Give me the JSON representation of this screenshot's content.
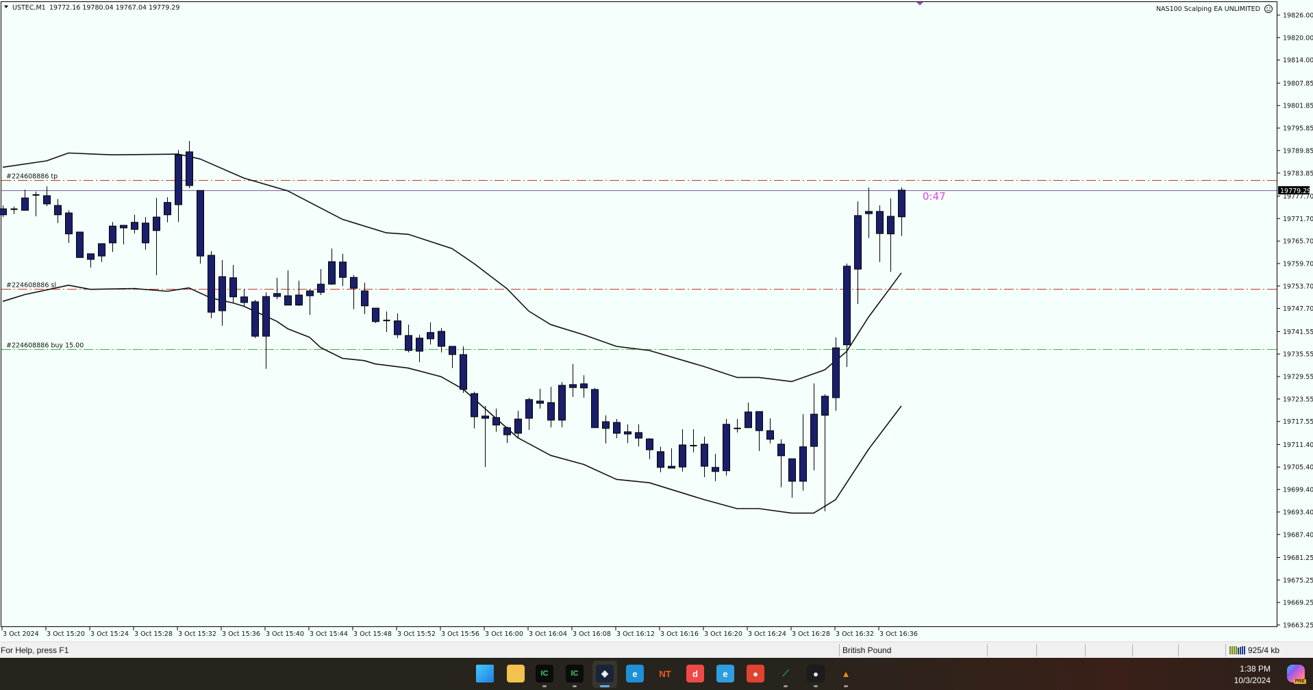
{
  "chart_header": {
    "symbol": "USTEC,M1",
    "ohlc": "19772.16 19780.04 19767.04 19779.29",
    "ea_label": "NAS100 Scalping EA UNLIMITED",
    "ea_icon": "smiley-face-icon"
  },
  "timer": "0:47",
  "current_price_label": "19779.29",
  "colors": {
    "background": "#f5fffb",
    "candle_fill": "#1a1f6b",
    "candle_outline": "#000000",
    "band_line": "#111111",
    "bid_line": "#7b5ea7",
    "tp_line": "#c0392b",
    "sl_line": "#c0392b",
    "buy_line": "#3cb043",
    "timer": "#e040e0"
  },
  "order_lines": [
    {
      "label": "#224608886 tp",
      "price": 19782.0,
      "kind": "tp"
    },
    {
      "label": "#224608886 sl",
      "price": 19752.9,
      "kind": "sl"
    },
    {
      "label": "#224608886 buy 15.00",
      "price": 19736.9,
      "kind": "buy"
    }
  ],
  "chart_data": {
    "type": "candlestick",
    "symbol": "USTEC",
    "timeframe": "M1",
    "ylim": [
      19663.25,
      19826.0
    ],
    "grid": false,
    "price_ticks": [
      "19826.00",
      "19820.00",
      "19814.00",
      "19807.85",
      "19801.85",
      "19795.85",
      "19789.85",
      "19783.85",
      "19777.70",
      "19771.70",
      "19765.70",
      "19759.70",
      "19753.70",
      "19747.70",
      "19741.55",
      "19735.55",
      "19729.55",
      "19723.55",
      "19717.55",
      "19711.40",
      "19705.40",
      "19699.40",
      "19693.40",
      "19687.40",
      "19681.25",
      "19675.25",
      "19669.25",
      "19663.25"
    ],
    "time_ticks": [
      {
        "text": "3 Oct 2024",
        "at": "15:16"
      },
      {
        "text": "3 Oct 15:20",
        "at": "15:20"
      },
      {
        "text": "3 Oct 15:24",
        "at": "15:24"
      },
      {
        "text": "3 Oct 15:28",
        "at": "15:28"
      },
      {
        "text": "3 Oct 15:32",
        "at": "15:32"
      },
      {
        "text": "3 Oct 15:36",
        "at": "15:36"
      },
      {
        "text": "3 Oct 15:40",
        "at": "15:40"
      },
      {
        "text": "3 Oct 15:44",
        "at": "15:44"
      },
      {
        "text": "3 Oct 15:48",
        "at": "15:48"
      },
      {
        "text": "3 Oct 15:52",
        "at": "15:52"
      },
      {
        "text": "3 Oct 15:56",
        "at": "15:56"
      },
      {
        "text": "3 Oct 16:00",
        "at": "16:00"
      },
      {
        "text": "3 Oct 16:04",
        "at": "16:04"
      },
      {
        "text": "3 Oct 16:08",
        "at": "16:08"
      },
      {
        "text": "3 Oct 16:12",
        "at": "16:12"
      },
      {
        "text": "3 Oct 16:16",
        "at": "16:16"
      },
      {
        "text": "3 Oct 16:20",
        "at": "16:20"
      },
      {
        "text": "3 Oct 16:24",
        "at": "16:24"
      },
      {
        "text": "3 Oct 16:28",
        "at": "16:28"
      },
      {
        "text": "3 Oct 16:32",
        "at": "16:32"
      },
      {
        "text": "3 Oct 16:36",
        "at": "16:36"
      }
    ],
    "candles_columns": [
      "time",
      "open",
      "high",
      "low",
      "close"
    ],
    "candles": [
      [
        "15:16",
        19772.7,
        19775.2,
        19772.1,
        19774.3
      ],
      [
        "15:17",
        19774.2,
        19774.9,
        19772.9,
        19774.2
      ],
      [
        "15:18",
        19773.9,
        19779.4,
        19773.8,
        19777.2
      ],
      [
        "15:19",
        19778.0,
        19778.9,
        19772.3,
        19778.0
      ],
      [
        "15:20",
        19777.8,
        19780.3,
        19775.0,
        19775.6
      ],
      [
        "15:21",
        19775.2,
        19776.9,
        19770.5,
        19772.7
      ],
      [
        "15:22",
        19773.2,
        19773.9,
        19765.2,
        19767.6
      ],
      [
        "15:23",
        19768.1,
        19768.2,
        19761.2,
        19761.3
      ],
      [
        "15:24",
        19760.8,
        19762.4,
        19758.6,
        19762.3
      ],
      [
        "15:25",
        19761.7,
        19765.0,
        19760.1,
        19765.0
      ],
      [
        "15:26",
        19765.2,
        19770.8,
        19762.8,
        19769.7
      ],
      [
        "15:27",
        19769.9,
        19769.9,
        19764.8,
        19769.2
      ],
      [
        "15:28",
        19768.8,
        19772.7,
        19767.7,
        19770.7
      ],
      [
        "15:29",
        19770.5,
        19772.1,
        19763.4,
        19765.2
      ],
      [
        "15:30",
        19768.5,
        19777.2,
        19756.6,
        19772.1
      ],
      [
        "15:31",
        19772.7,
        19777.4,
        19770.7,
        19776.0
      ],
      [
        "15:32",
        19775.4,
        19790.0,
        19770.8,
        19788.7
      ],
      [
        "15:33",
        19789.5,
        19792.4,
        19779.8,
        19780.5
      ],
      [
        "15:34",
        19779.2,
        19779.2,
        19759.7,
        19761.7
      ],
      [
        "15:35",
        19761.9,
        19763.0,
        19745.1,
        19746.7
      ],
      [
        "15:36",
        19747.1,
        19760.6,
        19743.1,
        19756.2
      ],
      [
        "15:37",
        19755.9,
        19759.3,
        19749.3,
        19750.8
      ],
      [
        "15:38",
        19750.8,
        19752.9,
        19748.4,
        19749.3
      ],
      [
        "15:39",
        19749.5,
        19750.0,
        19739.8,
        19740.3
      ],
      [
        "15:40",
        19740.3,
        19752.0,
        19731.6,
        19750.9
      ],
      [
        "15:41",
        19750.9,
        19755.9,
        19750.2,
        19751.7
      ],
      [
        "15:42",
        19751.1,
        19757.9,
        19748.6,
        19748.6
      ],
      [
        "15:43",
        19748.6,
        19755.1,
        19748.4,
        19751.3
      ],
      [
        "15:44",
        19751.1,
        19752.9,
        19746.0,
        19752.4
      ],
      [
        "15:45",
        19752.0,
        19758.2,
        19751.3,
        19754.2
      ],
      [
        "15:46",
        19754.2,
        19763.7,
        19754.0,
        19760.2
      ],
      [
        "15:47",
        19760.1,
        19762.3,
        19753.7,
        19756.0
      ],
      [
        "15:48",
        19756.0,
        19756.6,
        19747.5,
        19753.1
      ],
      [
        "15:49",
        19752.4,
        19754.6,
        19746.2,
        19748.4
      ],
      [
        "15:50",
        19747.8,
        19747.8,
        19743.8,
        19744.2
      ],
      [
        "15:51",
        19744.5,
        19746.9,
        19741.4,
        19744.5
      ],
      [
        "15:52",
        19744.4,
        19746.4,
        19739.8,
        19740.7
      ],
      [
        "15:53",
        19740.5,
        19743.4,
        19736.0,
        19736.5
      ],
      [
        "15:54",
        19736.3,
        19740.7,
        19733.4,
        19739.8
      ],
      [
        "15:55",
        19739.6,
        19744.0,
        19738.1,
        19741.3
      ],
      [
        "15:56",
        19741.6,
        19742.5,
        19736.0,
        19737.6
      ],
      [
        "15:57",
        19737.6,
        19737.6,
        19731.8,
        19735.4
      ],
      [
        "15:58",
        19735.4,
        19737.6,
        19725.2,
        19726.1
      ],
      [
        "15:59",
        19725.0,
        19725.5,
        19715.7,
        19718.8
      ],
      [
        "16:00",
        19719.0,
        19721.7,
        19705.4,
        19718.4
      ],
      [
        "16:01",
        19718.6,
        19721.0,
        19714.8,
        19716.6
      ],
      [
        "16:02",
        19715.9,
        19716.2,
        19711.8,
        19714.0
      ],
      [
        "16:03",
        19714.4,
        19720.4,
        19713.3,
        19718.2
      ],
      [
        "16:04",
        19718.4,
        19723.9,
        19715.3,
        19723.4
      ],
      [
        "16:05",
        19723.0,
        19726.3,
        19721.0,
        19722.4
      ],
      [
        "16:06",
        19722.6,
        19726.8,
        19716.0,
        19717.9
      ],
      [
        "16:07",
        19717.9,
        19728.1,
        19716.0,
        19727.2
      ],
      [
        "16:08",
        19727.4,
        19732.9,
        19724.1,
        19726.6
      ],
      [
        "16:09",
        19726.5,
        19729.9,
        19723.9,
        19727.6
      ],
      [
        "16:10",
        19726.1,
        19726.5,
        19715.9,
        19715.9
      ],
      [
        "16:11",
        19715.7,
        19719.2,
        19711.7,
        19717.5
      ],
      [
        "16:12",
        19717.3,
        19718.2,
        19713.1,
        19714.4
      ],
      [
        "16:13",
        19714.2,
        19716.8,
        19711.8,
        19714.8
      ],
      [
        "16:14",
        19714.6,
        19716.8,
        19710.9,
        19713.1
      ],
      [
        "16:15",
        19712.9,
        19713.1,
        19707.5,
        19710.0
      ],
      [
        "16:16",
        19709.5,
        19710.8,
        19704.0,
        19705.3
      ],
      [
        "16:17",
        19705.1,
        19710.4,
        19705.1,
        19705.6
      ],
      [
        "16:18",
        19705.4,
        19715.5,
        19704.2,
        19711.3
      ],
      [
        "16:19",
        19711.1,
        19715.5,
        19709.3,
        19711.1
      ],
      [
        "16:20",
        19711.5,
        19713.5,
        19702.7,
        19705.6
      ],
      [
        "16:21",
        19705.3,
        19708.9,
        19701.6,
        19704.2
      ],
      [
        "16:22",
        19704.4,
        19718.2,
        19703.1,
        19716.8
      ],
      [
        "16:23",
        19715.7,
        19718.2,
        19714.6,
        19715.7
      ],
      [
        "16:24",
        19715.9,
        19722.6,
        19715.9,
        19720.1
      ],
      [
        "16:25",
        19720.2,
        19720.2,
        19709.7,
        19715.1
      ],
      [
        "16:26",
        19715.1,
        19718.4,
        19711.7,
        19712.8
      ],
      [
        "16:27",
        19711.5,
        19712.8,
        19700.0,
        19708.4
      ],
      [
        "16:28",
        19707.6,
        19707.6,
        19697.2,
        19701.6
      ],
      [
        "16:29",
        19701.6,
        19719.5,
        19699.1,
        19710.8
      ],
      [
        "16:30",
        19710.9,
        19727.7,
        19704.5,
        19719.5
      ],
      [
        "16:31",
        19719.2,
        19724.8,
        19693.6,
        19724.3
      ],
      [
        "16:32",
        19723.9,
        19740.0,
        19720.4,
        19737.2
      ],
      [
        "16:33",
        19738.0,
        19759.7,
        19732.1,
        19759.0
      ],
      [
        "16:34",
        19758.2,
        19776.3,
        19748.9,
        19772.5
      ],
      [
        "16:35",
        19773.0,
        19780.0,
        19766.5,
        19773.6
      ],
      [
        "16:36",
        19773.6,
        19775.2,
        19760.1,
        19767.7
      ],
      [
        "16:37",
        19767.6,
        19777.1,
        19757.5,
        19772.3
      ],
      [
        "16:38",
        19772.16,
        19780.04,
        19767.04,
        19779.29
      ]
    ],
    "bands": {
      "upper": [
        [
          "15:16",
          19785.4
        ],
        [
          "15:20",
          19787.1
        ],
        [
          "15:22",
          19789.2
        ],
        [
          "15:26",
          19788.7
        ],
        [
          "15:32",
          19788.9
        ],
        [
          "15:34",
          19787.6
        ],
        [
          "15:38",
          19782.5
        ],
        [
          "15:42",
          19779.1
        ],
        [
          "15:47",
          19771.5
        ],
        [
          "15:51",
          19767.9
        ],
        [
          "15:53",
          19767.5
        ],
        [
          "15:57",
          19763.7
        ],
        [
          "15:59",
          19759.7
        ],
        [
          "16:02",
          19753.0
        ],
        [
          "16:04",
          19747.0
        ],
        [
          "16:06",
          19743.4
        ],
        [
          "16:09",
          19740.7
        ],
        [
          "16:12",
          19737.6
        ],
        [
          "16:15",
          19736.5
        ],
        [
          "16:20",
          19732.2
        ],
        [
          "16:23",
          19729.3
        ],
        [
          "16:25",
          19729.3
        ],
        [
          "16:28",
          19728.2
        ],
        [
          "16:31",
          19731.3
        ],
        [
          "16:33",
          19736.2
        ],
        [
          "16:35",
          19745.4
        ],
        [
          "16:38",
          19757.2
        ]
      ],
      "lower": [
        [
          "15:16",
          19749.6
        ],
        [
          "15:18",
          19751.4
        ],
        [
          "15:22",
          19753.9
        ],
        [
          "15:24",
          19752.8
        ],
        [
          "15:28",
          19753.0
        ],
        [
          "15:31",
          19752.3
        ],
        [
          "15:33",
          19753.2
        ],
        [
          "15:35",
          19750.5
        ],
        [
          "15:37",
          19749.2
        ],
        [
          "15:38",
          19748.3
        ],
        [
          "15:41",
          19744.3
        ],
        [
          "15:42",
          19742.3
        ],
        [
          "15:44",
          19740.0
        ],
        [
          "15:45",
          19737.3
        ],
        [
          "15:47",
          19734.4
        ],
        [
          "15:49",
          19733.8
        ],
        [
          "15:50",
          19732.9
        ],
        [
          "15:53",
          19731.8
        ],
        [
          "15:56",
          19729.5
        ],
        [
          "15:58",
          19726.2
        ],
        [
          "16:03",
          19713.2
        ],
        [
          "16:06",
          19708.5
        ],
        [
          "16:09",
          19706.1
        ],
        [
          "16:12",
          19702.1
        ],
        [
          "16:15",
          19701.2
        ],
        [
          "16:20",
          19696.7
        ],
        [
          "16:23",
          19694.3
        ],
        [
          "16:25",
          19694.3
        ],
        [
          "16:28",
          19693.1
        ],
        [
          "16:30",
          19693.1
        ],
        [
          "16:32",
          19696.7
        ],
        [
          "16:35",
          19710.1
        ],
        [
          "16:38",
          19721.7
        ]
      ]
    }
  },
  "statusbar": {
    "help": "For Help, press F1",
    "profile": "British Pound",
    "traffic": "925/4 kb"
  },
  "taskbar": {
    "apps": [
      {
        "name": "start-button",
        "glyph": "",
        "bg": "#2aa7f0"
      },
      {
        "name": "file-explorer-icon",
        "glyph": "",
        "bg": "#f2c14e"
      },
      {
        "name": "ic-markets-icon",
        "glyph": "IC",
        "bg": "#0b0b0b"
      },
      {
        "name": "ic-markets-icon-2",
        "glyph": "IC",
        "bg": "#0b0b0b"
      },
      {
        "name": "trading-app-icon",
        "glyph": "◈",
        "bg": "#1a2438"
      },
      {
        "name": "edge-icon",
        "glyph": "e",
        "bg": "#1f8fd8"
      },
      {
        "name": "ninjatrader-icon",
        "glyph": "NT",
        "bg": "transparent"
      },
      {
        "name": "d-app-icon",
        "glyph": "d",
        "bg": "#f04848"
      },
      {
        "name": "edge-profile-icon",
        "glyph": "e",
        "bg": "#2f9ee0"
      },
      {
        "name": "chrome-icon",
        "glyph": "●",
        "bg": "#e0432f"
      },
      {
        "name": "tradingview-icon",
        "glyph": "⟋",
        "bg": "transparent"
      },
      {
        "name": "screen-recorder-icon",
        "glyph": "●",
        "bg": "#1c1c1c"
      },
      {
        "name": "vlc-icon",
        "glyph": "▲",
        "bg": "transparent"
      }
    ],
    "time": "1:38 PM",
    "date": "10/3/2024"
  }
}
